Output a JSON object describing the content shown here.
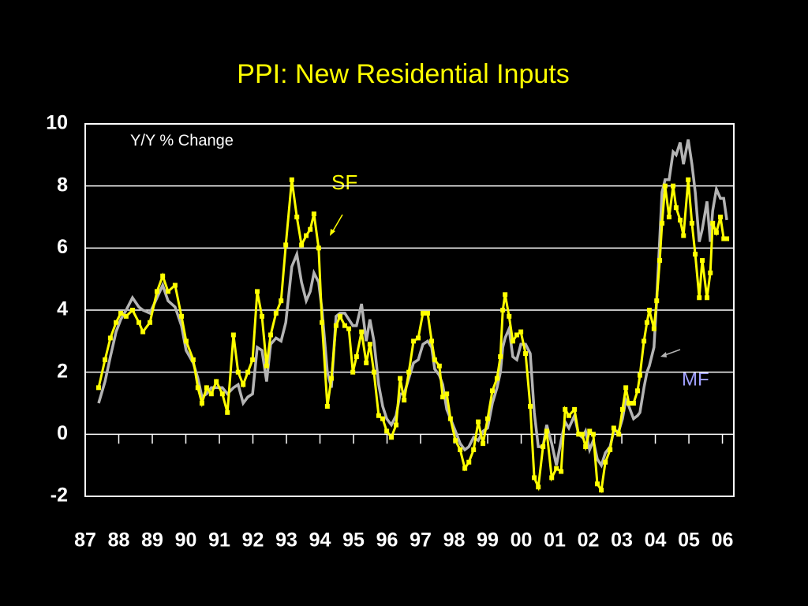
{
  "chart_data": {
    "type": "line",
    "title": "PPI: New Residential Inputs",
    "annotations": [
      "Y/Y % Change",
      "SF",
      "MF"
    ],
    "x": [
      1987.4,
      1987.59,
      1987.75,
      1987.92,
      1988.06,
      1988.22,
      1988.41,
      1988.6,
      1988.72,
      1988.93,
      1989.14,
      1989.31,
      1989.47,
      1989.68,
      1989.87,
      1990.01,
      1990.22,
      1990.36,
      1990.48,
      1990.62,
      1990.76,
      1990.91,
      1991.09,
      1991.24,
      1991.42,
      1991.56,
      1991.71,
      1991.85,
      1991.99,
      1992.13,
      1992.27,
      1992.41,
      1992.53,
      1992.69,
      1992.84,
      1992.98,
      1993.16,
      1993.31,
      1993.45,
      1993.59,
      1993.71,
      1993.82,
      1993.96,
      1994.06,
      1994.22,
      1994.34,
      1994.48,
      1994.6,
      1994.74,
      1994.86,
      1994.98,
      1995.09,
      1995.24,
      1995.38,
      1995.49,
      1995.61,
      1995.75,
      1995.87,
      1995.99,
      1996.13,
      1996.27,
      1996.39,
      1996.51,
      1996.65,
      1996.79,
      1996.93,
      1997.07,
      1997.21,
      1997.33,
      1997.42,
      1997.56,
      1997.66,
      1997.78,
      1997.89,
      1998.04,
      1998.18,
      1998.32,
      1998.44,
      1998.58,
      1998.72,
      1998.86,
      1999.0,
      1999.14,
      1999.28,
      1999.38,
      1999.45,
      1999.52,
      1999.64,
      1999.75,
      1999.87,
      1999.99,
      2000.13,
      2000.27,
      2000.39,
      2000.51,
      2000.65,
      2000.76,
      2000.91,
      2001.05,
      2001.19,
      2001.31,
      2001.42,
      2001.59,
      2001.71,
      2001.82,
      2001.92,
      2002.04,
      2002.15,
      2002.27,
      2002.39,
      2002.51,
      2002.65,
      2002.76,
      2002.91,
      2003.02,
      2003.12,
      2003.21,
      2003.35,
      2003.47,
      2003.54,
      2003.66,
      2003.75,
      2003.82,
      2003.96,
      2004.04,
      2004.13,
      2004.2,
      2004.29,
      2004.41,
      2004.53,
      2004.62,
      2004.74,
      2004.84,
      2004.98,
      2005.09,
      2005.19,
      2005.31,
      2005.4,
      2005.54,
      2005.64,
      2005.71,
      2005.82,
      2005.94,
      2006.04,
      2006.13
    ],
    "series": [
      {
        "name": "SF",
        "color": "#ffff00",
        "values": [
          1.5,
          2.4,
          3.1,
          3.6,
          3.9,
          3.8,
          4.0,
          3.6,
          3.3,
          3.6,
          4.6,
          5.1,
          4.6,
          4.8,
          3.8,
          3.0,
          2.4,
          1.5,
          1.0,
          1.5,
          1.3,
          1.7,
          1.3,
          0.7,
          3.2,
          2.0,
          1.6,
          2.0,
          2.4,
          4.6,
          3.8,
          2.2,
          3.2,
          3.9,
          4.3,
          6.1,
          8.2,
          7.0,
          6.1,
          6.4,
          6.6,
          7.1,
          6.0,
          3.6,
          0.9,
          1.8,
          3.5,
          3.8,
          3.5,
          3.4,
          2.0,
          2.5,
          3.3,
          2.3,
          2.9,
          2.0,
          0.6,
          0.5,
          0.1,
          -0.1,
          0.3,
          1.8,
          1.1,
          2.0,
          3.0,
          3.1,
          3.9,
          3.9,
          3.0,
          2.4,
          2.2,
          1.2,
          1.3,
          0.5,
          -0.2,
          -0.5,
          -1.1,
          -0.9,
          -0.5,
          0.4,
          -0.3,
          0.5,
          1.4,
          1.8,
          2.5,
          4.0,
          4.5,
          3.8,
          3.0,
          3.2,
          3.3,
          2.6,
          0.9,
          -1.4,
          -1.7,
          -0.4,
          0.1,
          -1.4,
          -1.1,
          -1.2,
          0.8,
          0.6,
          0.8,
          0.0,
          0.0,
          -0.4,
          0.1,
          0.0,
          -1.6,
          -1.8,
          -0.9,
          -0.5,
          0.2,
          0.0,
          0.8,
          1.5,
          1.0,
          1.0,
          1.4,
          1.9,
          3.0,
          3.6,
          4.0,
          3.4,
          4.3,
          5.6,
          6.8,
          8.0,
          7.0,
          8.0,
          7.3,
          6.9,
          6.4,
          8.2,
          6.8,
          5.8,
          4.4,
          5.6,
          4.4,
          5.2,
          6.8,
          6.5,
          7.0,
          6.3,
          6.3
        ]
      },
      {
        "name": "MF",
        "color": "#b4b4b4",
        "values": [
          1.0,
          1.7,
          2.5,
          3.3,
          3.7,
          4.0,
          4.4,
          4.1,
          4.0,
          3.9,
          4.4,
          4.8,
          4.3,
          4.1,
          3.5,
          2.7,
          2.3,
          1.8,
          1.2,
          1.3,
          1.5,
          1.5,
          1.5,
          1.3,
          1.5,
          1.6,
          1.0,
          1.2,
          1.3,
          2.8,
          2.7,
          1.7,
          2.9,
          3.1,
          3.0,
          3.6,
          5.4,
          5.8,
          4.9,
          4.3,
          4.6,
          5.2,
          4.9,
          4.0,
          2.0,
          1.5,
          3.8,
          3.9,
          3.9,
          3.7,
          3.5,
          3.5,
          4.2,
          3.0,
          3.7,
          3.0,
          1.6,
          0.9,
          0.5,
          0.3,
          0.6,
          1.3,
          1.3,
          1.8,
          2.3,
          2.4,
          2.9,
          3.0,
          2.8,
          2.1,
          1.9,
          1.6,
          0.8,
          0.5,
          0.1,
          -0.3,
          -0.5,
          -0.4,
          -0.1,
          -0.2,
          0.1,
          0.2,
          1.0,
          1.5,
          2.0,
          2.8,
          3.1,
          3.4,
          2.5,
          2.4,
          2.9,
          2.9,
          2.6,
          0.7,
          -0.4,
          -0.4,
          0.3,
          -0.3,
          -1.0,
          -0.2,
          0.4,
          0.2,
          0.6,
          0.0,
          -0.1,
          0.1,
          -0.5,
          -0.2,
          -0.8,
          -1.0,
          -0.6,
          -0.4,
          0.1,
          0.1,
          0.5,
          1.1,
          0.9,
          0.5,
          0.6,
          0.7,
          1.5,
          2.0,
          2.2,
          2.8,
          4.3,
          6.3,
          7.8,
          8.2,
          8.2,
          9.1,
          9.0,
          9.4,
          8.7,
          9.5,
          8.7,
          7.8,
          6.2,
          6.6,
          7.5,
          6.2,
          7.2,
          7.9,
          7.6,
          7.6,
          6.9
        ]
      }
    ],
    "xlim": [
      1987,
      2006.34
    ],
    "xticks": [
      {
        "value": 1987,
        "label": "87"
      },
      {
        "value": 1988,
        "label": "88"
      },
      {
        "value": 1989,
        "label": "89"
      },
      {
        "value": 1990,
        "label": "90"
      },
      {
        "value": 1991,
        "label": "91"
      },
      {
        "value": 1992,
        "label": "92"
      },
      {
        "value": 1993,
        "label": "93"
      },
      {
        "value": 1994,
        "label": "94"
      },
      {
        "value": 1995,
        "label": "95"
      },
      {
        "value": 1996,
        "label": "96"
      },
      {
        "value": 1997,
        "label": "97"
      },
      {
        "value": 1998,
        "label": "98"
      },
      {
        "value": 1999,
        "label": "99"
      },
      {
        "value": 2000,
        "label": "00"
      },
      {
        "value": 2001,
        "label": "01"
      },
      {
        "value": 2002,
        "label": "02"
      },
      {
        "value": 2003,
        "label": "03"
      },
      {
        "value": 2004,
        "label": "04"
      },
      {
        "value": 2005,
        "label": "05"
      },
      {
        "value": 2006,
        "label": "06"
      }
    ],
    "ylim": [
      -2,
      10
    ],
    "yticks": [
      -2,
      0,
      2,
      4,
      6,
      8,
      10
    ],
    "grid": true
  }
}
